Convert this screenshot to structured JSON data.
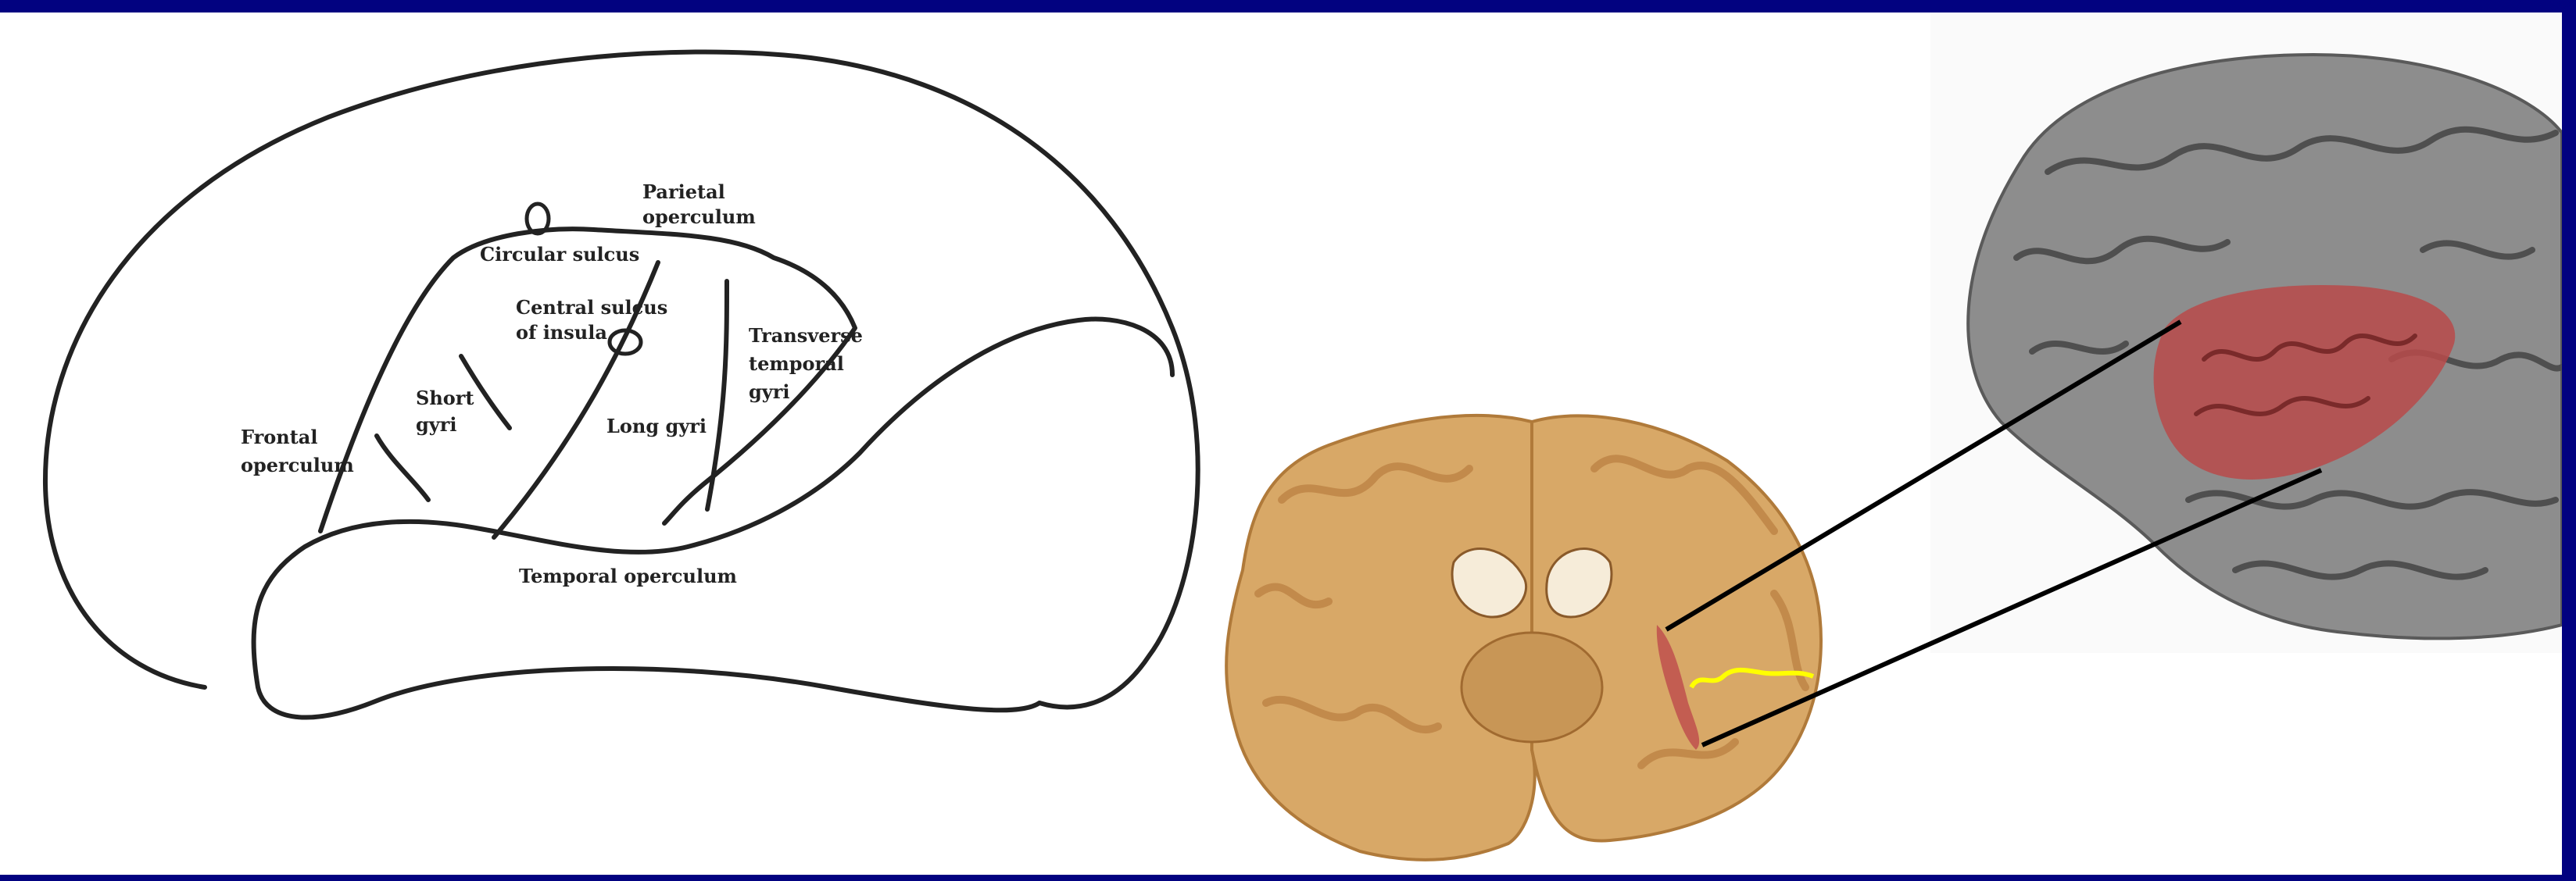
{
  "colors": {
    "slide_border": "#020280",
    "insula_highlight": "#c0504d",
    "yellow_line": "#ffff00"
  },
  "diagram": {
    "labels": {
      "parietal_operculum_1": "Parietal",
      "parietal_operculum_2": "operculum",
      "circular_sulcus": "Circular sulcus",
      "central_sulcus_1": "Central sulcus",
      "central_sulcus_2": "of insula",
      "transverse_1": "Transverse",
      "transverse_2": "temporal",
      "transverse_3": "gyri",
      "short_gyri_1": "Short",
      "short_gyri_2": "gyri",
      "long_gyri": "Long gyri",
      "frontal_operculum_1": "Frontal",
      "frontal_operculum_2": "operculum",
      "temporal_operculum": "Temporal operculum"
    }
  },
  "images": {
    "coronal_section": "coronal-brain-section-photo",
    "lateral_brain": "lateral-brain-photo-with-insula"
  }
}
